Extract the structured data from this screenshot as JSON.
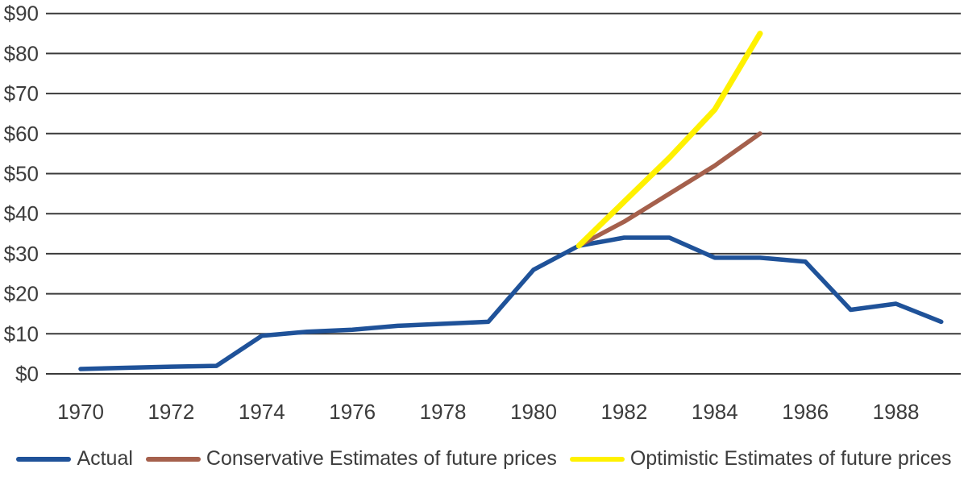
{
  "chart_data": {
    "type": "line",
    "x": [
      1970,
      1971,
      1972,
      1973,
      1974,
      1975,
      1976,
      1977,
      1978,
      1979,
      1980,
      1981,
      1982,
      1983,
      1984,
      1985,
      1986,
      1987,
      1988,
      1989
    ],
    "series": [
      {
        "name": "Actual",
        "color": "#1F5299",
        "x": [
          1970,
          1971,
          1972,
          1973,
          1974,
          1975,
          1976,
          1977,
          1978,
          1979,
          1980,
          1981,
          1982,
          1983,
          1984,
          1985,
          1986,
          1987,
          1988,
          1989
        ],
        "values": [
          1.2,
          1.5,
          1.8,
          2,
          9.5,
          10.5,
          11,
          12,
          12.5,
          13,
          26,
          32,
          34,
          34,
          29,
          29,
          28,
          16,
          17.5,
          13
        ]
      },
      {
        "name": "Conservative Estimates of future prices",
        "color": "#A5604C",
        "x": [
          1981,
          1982,
          1983,
          1984,
          1985
        ],
        "values": [
          32,
          38,
          45,
          52,
          60
        ]
      },
      {
        "name": "Optimistic Estimates of future prices",
        "color": "#FFF100",
        "x": [
          1981,
          1982,
          1983,
          1984,
          1985
        ],
        "values": [
          32,
          43,
          54,
          66,
          85
        ]
      }
    ],
    "y_axis": {
      "min": 0,
      "max": 90,
      "step": 10,
      "tick_labels": [
        "$0",
        "$10",
        "$20",
        "$30",
        "$40",
        "$50",
        "$60",
        "$70",
        "$80",
        "$90"
      ],
      "grid": true
    },
    "x_axis": {
      "tick_labels": [
        "1970",
        "1972",
        "1974",
        "1976",
        "1978",
        "1980",
        "1982",
        "1984",
        "1986",
        "1988"
      ]
    },
    "legend_position": "bottom"
  },
  "colors": {
    "background": "#FFFFFF",
    "gridline": "#3A3A3A",
    "axis_text": "#3C3C3C"
  }
}
